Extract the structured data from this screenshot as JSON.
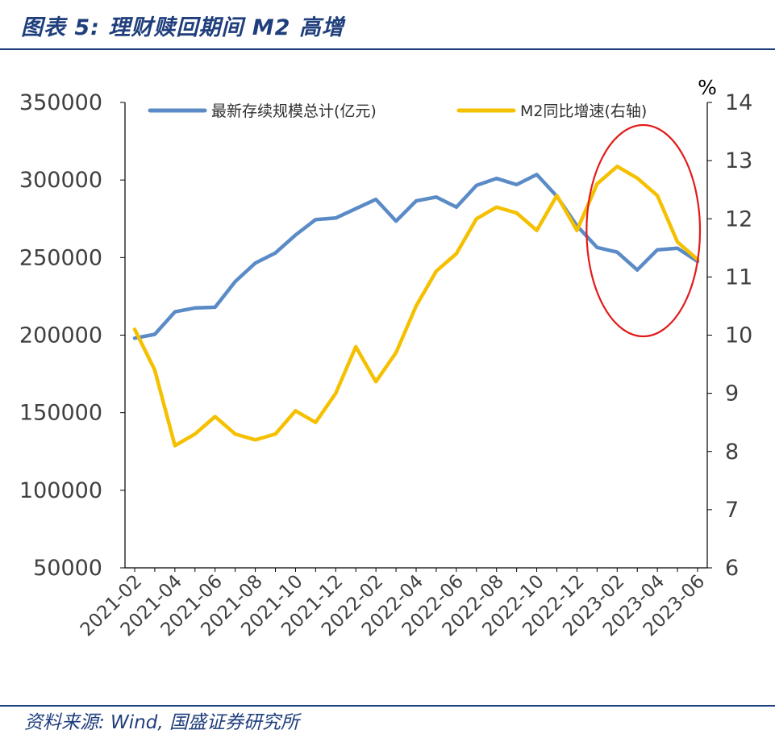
{
  "header": {
    "title": "图表 5:  理财赎回期间 M2 高增"
  },
  "footer": {
    "source": "资料来源: Wind, 国盛证券研究所"
  },
  "colors": {
    "brand": "#1f3e7c",
    "series_left": "#5b8bc7",
    "series_right": "#f5c000",
    "highlight": "#e31b1b",
    "axis_text": "#404040"
  },
  "chart_data": {
    "type": "line",
    "x": [
      "2021-02",
      "2021-03",
      "2021-04",
      "2021-05",
      "2021-06",
      "2021-07",
      "2021-08",
      "2021-09",
      "2021-10",
      "2021-11",
      "2021-12",
      "2022-01",
      "2022-02",
      "2022-03",
      "2022-04",
      "2022-05",
      "2022-06",
      "2022-07",
      "2022-08",
      "2022-09",
      "2022-10",
      "2022-11",
      "2022-12",
      "2023-01",
      "2023-02",
      "2023-03",
      "2023-04",
      "2023-05",
      "2023-06"
    ],
    "xticks": [
      "2021-02",
      "2021-04",
      "2021-06",
      "2021-08",
      "2021-10",
      "2021-12",
      "2022-02",
      "2022-04",
      "2022-06",
      "2022-08",
      "2022-10",
      "2022-12",
      "2023-02",
      "2023-04",
      "2023-06"
    ],
    "series": [
      {
        "name": "最新存续规模总计(亿元)",
        "axis": "left",
        "color": "#5b8bc7",
        "values": [
          198000,
          200500,
          215000,
          217500,
          218000,
          234500,
          246500,
          253000,
          264500,
          274500,
          275500,
          281500,
          287500,
          273500,
          286500,
          289000,
          282500,
          296500,
          301000,
          297000,
          303500,
          289500,
          270500,
          256500,
          253500,
          242000,
          255000,
          256000,
          247500
        ]
      },
      {
        "name": "M2同比增速(右轴)",
        "axis": "right",
        "color": "#f5c000",
        "values": [
          10.1,
          9.4,
          8.1,
          8.3,
          8.6,
          8.3,
          8.2,
          8.3,
          8.7,
          8.5,
          9.0,
          9.8,
          9.2,
          9.7,
          10.5,
          11.1,
          11.4,
          12.0,
          12.2,
          12.1,
          11.8,
          12.4,
          11.8,
          12.6,
          12.9,
          12.7,
          12.4,
          11.6,
          11.3
        ]
      }
    ],
    "y_left": {
      "min": 50000,
      "max": 350000,
      "ticks": [
        50000,
        100000,
        150000,
        200000,
        250000,
        300000,
        350000
      ]
    },
    "y_right": {
      "min": 6,
      "max": 14,
      "ticks": [
        6,
        7,
        8,
        9,
        10,
        11,
        12,
        13,
        14
      ],
      "unit": "%"
    },
    "legend": {
      "placement": "top"
    },
    "grid": false,
    "annotation": {
      "shape": "ellipse",
      "from": "2023-01",
      "to": "2023-06",
      "color": "#e31b1b"
    }
  }
}
